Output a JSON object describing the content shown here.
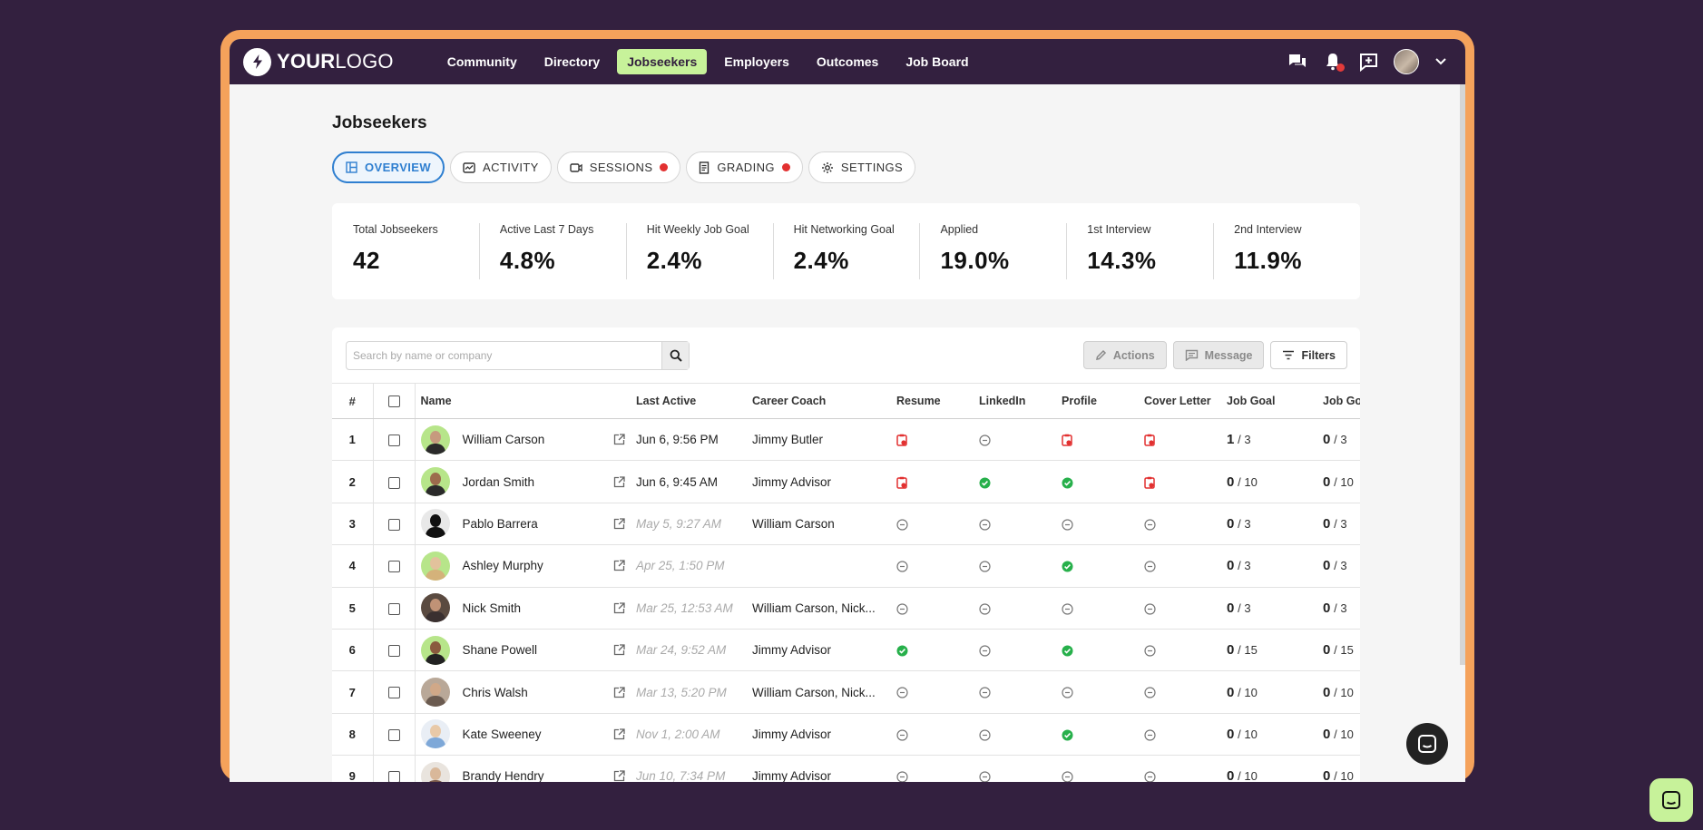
{
  "brand": {
    "logo_bold": "YOUR",
    "logo_light": "LOGO"
  },
  "nav": {
    "items": [
      {
        "label": "Community",
        "active": false
      },
      {
        "label": "Directory",
        "active": false
      },
      {
        "label": "Jobseekers",
        "active": true
      },
      {
        "label": "Employers",
        "active": false
      },
      {
        "label": "Outcomes",
        "active": false
      },
      {
        "label": "Job Board",
        "active": false
      }
    ],
    "right_icons": [
      "chat-bubbles-icon",
      "bell-icon",
      "add-post-icon",
      "user-avatar",
      "chevron-down-icon"
    ]
  },
  "page": {
    "title": "Jobseekers"
  },
  "tabs": [
    {
      "label": "OVERVIEW",
      "icon": "layout-icon",
      "active": true,
      "dot": false
    },
    {
      "label": "ACTIVITY",
      "icon": "activity-icon",
      "active": false,
      "dot": false
    },
    {
      "label": "SESSIONS",
      "icon": "video-icon",
      "active": false,
      "dot": true
    },
    {
      "label": "GRADING",
      "icon": "document-icon",
      "active": false,
      "dot": true
    },
    {
      "label": "SETTINGS",
      "icon": "gear-icon",
      "active": false,
      "dot": false
    }
  ],
  "stats": [
    {
      "label": "Total Jobseekers",
      "value": "42"
    },
    {
      "label": "Active Last 7 Days",
      "value": "4.8%"
    },
    {
      "label": "Hit Weekly Job Goal",
      "value": "2.4%"
    },
    {
      "label": "Hit Networking Goal",
      "value": "2.4%"
    },
    {
      "label": "Applied",
      "value": "19.0%"
    },
    {
      "label": "1st Interview",
      "value": "14.3%"
    },
    {
      "label": "2nd Interview",
      "value": "11.9%"
    }
  ],
  "toolbar": {
    "search_placeholder": "Search by name or company",
    "actions_label": "Actions",
    "message_label": "Message",
    "filters_label": "Filters"
  },
  "table": {
    "columns": [
      "#",
      "",
      "Name",
      "Last Active",
      "Career Coach",
      "Resume",
      "LinkedIn",
      "Profile",
      "Cover Letter",
      "Job Goal",
      "Job Go"
    ],
    "rows": [
      {
        "num": "1",
        "name": "William Carson",
        "last_active": "Jun 6, 9:56 PM",
        "stale": false,
        "coach": "Jimmy Butler",
        "resume": "alert",
        "linkedin": "none",
        "profile": "alert",
        "cover": "alert",
        "goal_done": "1",
        "goal_total": "/ 3",
        "goal2_done": "0",
        "goal2_total": "/ 3",
        "avatar_bg": "#b7e58a",
        "skin": "#c69a7e",
        "shirt": "#2a2a2a"
      },
      {
        "num": "2",
        "name": "Jordan Smith",
        "last_active": "Jun 6, 9:45 AM",
        "stale": false,
        "coach": "Jimmy Advisor",
        "resume": "alert",
        "linkedin": "done",
        "profile": "done",
        "cover": "alert",
        "goal_done": "0",
        "goal_total": "/ 10",
        "goal2_done": "0",
        "goal2_total": "/ 10",
        "avatar_bg": "#b7e58a",
        "skin": "#9c6b4d",
        "shirt": "#2a2a2a"
      },
      {
        "num": "3",
        "name": "Pablo Barrera",
        "last_active": "May 5, 9:27 AM",
        "stale": true,
        "coach": "William Carson",
        "resume": "none",
        "linkedin": "none",
        "profile": "none",
        "cover": "none",
        "goal_done": "0",
        "goal_total": "/ 3",
        "goal2_done": "0",
        "goal2_total": "/ 3",
        "avatar_bg": "#e8e8e8",
        "skin": "#111111",
        "shirt": "#111111"
      },
      {
        "num": "4",
        "name": "Ashley Murphy",
        "last_active": "Apr 25, 1:50 PM",
        "stale": true,
        "coach": "",
        "resume": "none",
        "linkedin": "none",
        "profile": "done",
        "cover": "none",
        "goal_done": "0",
        "goal_total": "/ 3",
        "goal2_done": "0",
        "goal2_total": "/ 3",
        "avatar_bg": "#b7e58a",
        "skin": "#e2c29c",
        "shirt": "#d4b27a"
      },
      {
        "num": "5",
        "name": "Nick Smith",
        "last_active": "Mar 25, 12:53 AM",
        "stale": true,
        "coach": "William Carson, Nick...",
        "resume": "none",
        "linkedin": "none",
        "profile": "none",
        "cover": "none",
        "goal_done": "0",
        "goal_total": "/ 3",
        "goal2_done": "0",
        "goal2_total": "/ 3",
        "avatar_bg": "#5a4a40",
        "skin": "#c09276",
        "shirt": "#3a3030"
      },
      {
        "num": "6",
        "name": "Shane Powell",
        "last_active": "Mar 24, 9:52 AM",
        "stale": true,
        "coach": "Jimmy Advisor",
        "resume": "done",
        "linkedin": "none",
        "profile": "done",
        "cover": "none",
        "goal_done": "0",
        "goal_total": "/ 15",
        "goal2_done": "0",
        "goal2_total": "/ 15",
        "avatar_bg": "#b7e58a",
        "skin": "#8a5a3e",
        "shirt": "#222222"
      },
      {
        "num": "7",
        "name": "Chris Walsh",
        "last_active": "Mar 13, 5:20 PM",
        "stale": true,
        "coach": "William Carson, Nick...",
        "resume": "none",
        "linkedin": "none",
        "profile": "none",
        "cover": "none",
        "goal_done": "0",
        "goal_total": "/ 10",
        "goal2_done": "0",
        "goal2_total": "/ 10",
        "avatar_bg": "#b9a898",
        "skin": "#d0a888",
        "shirt": "#6b5b50"
      },
      {
        "num": "8",
        "name": "Kate Sweeney",
        "last_active": "Nov 1, 2:00 AM",
        "stale": true,
        "coach": "Jimmy Advisor",
        "resume": "none",
        "linkedin": "none",
        "profile": "done",
        "cover": "none",
        "goal_done": "0",
        "goal_total": "/ 10",
        "goal2_done": "0",
        "goal2_total": "/ 10",
        "avatar_bg": "#e9eef5",
        "skin": "#e8c9a8",
        "shirt": "#7ea8d8"
      },
      {
        "num": "9",
        "name": "Brandy Hendry",
        "last_active": "Jun 10, 7:34 PM",
        "stale": true,
        "coach": "Jimmy Advisor",
        "resume": "none",
        "linkedin": "none",
        "profile": "none",
        "cover": "none",
        "goal_done": "0",
        "goal_total": "/ 10",
        "goal2_done": "0",
        "goal2_total": "/ 10",
        "avatar_bg": "#e9e4de",
        "skin": "#d9b89a",
        "shirt": "#7a5a4a"
      }
    ]
  },
  "colors": {
    "brand_dark": "#33203f",
    "accent_green": "#c7f29a",
    "frame_orange": "#f5a25b",
    "tab_blue": "#2f7fd0",
    "alert_red": "#e23030",
    "done_green": "#27b04b"
  }
}
